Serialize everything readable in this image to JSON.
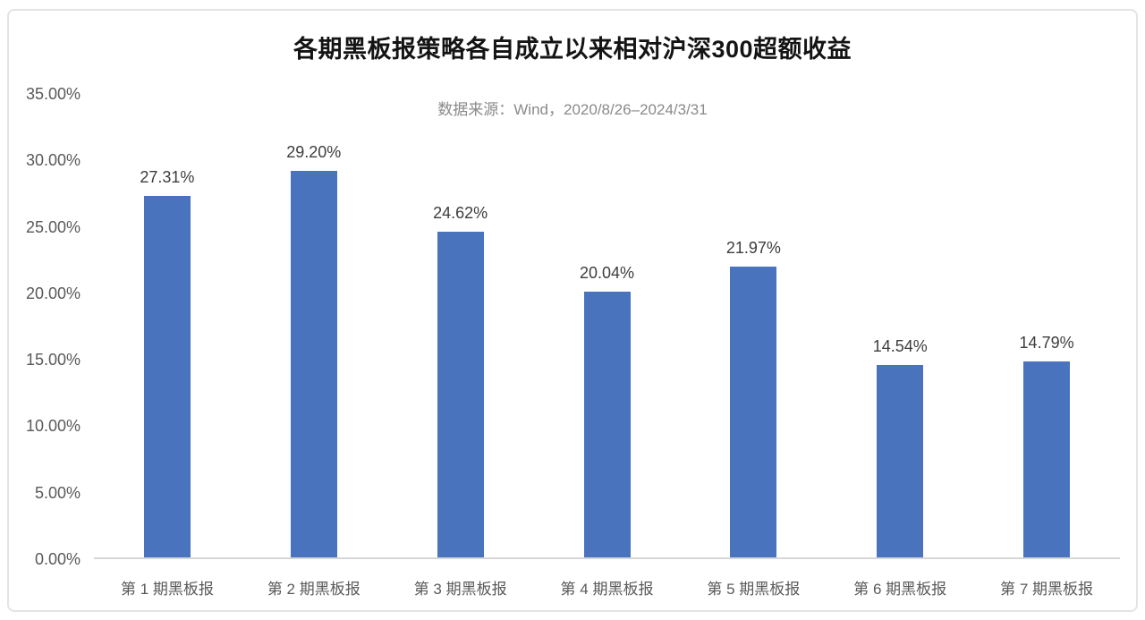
{
  "chart_data": {
    "type": "bar",
    "title": "各期黑板报策略各自成立以来相对沪深300超额收益",
    "subtitle": "数据来源：Wind，2020/8/26–2024/3/31",
    "categories": [
      "第 1 期黑板报",
      "第 2 期黑板报",
      "第 3 期黑板报",
      "第 4 期黑板报",
      "第 5 期黑板报",
      "第 6 期黑板报",
      "第 7 期黑板报"
    ],
    "values": [
      27.31,
      29.2,
      24.62,
      20.04,
      21.97,
      14.54,
      14.79
    ],
    "value_labels": [
      "27.31%",
      "29.20%",
      "24.62%",
      "20.04%",
      "21.97%",
      "14.54%",
      "14.79%"
    ],
    "yticks": [
      "35.00%",
      "30.00%",
      "25.00%",
      "20.00%",
      "15.00%",
      "10.00%",
      "5.00%",
      "0.00%"
    ],
    "ylim": [
      0,
      35
    ],
    "ytick_step": 5,
    "xlabel": "",
    "ylabel": "",
    "bar_color": "#4A73BE",
    "grid": false,
    "legend": false,
    "background": "#ffffff",
    "card_border_color": "#e4e4e4"
  }
}
